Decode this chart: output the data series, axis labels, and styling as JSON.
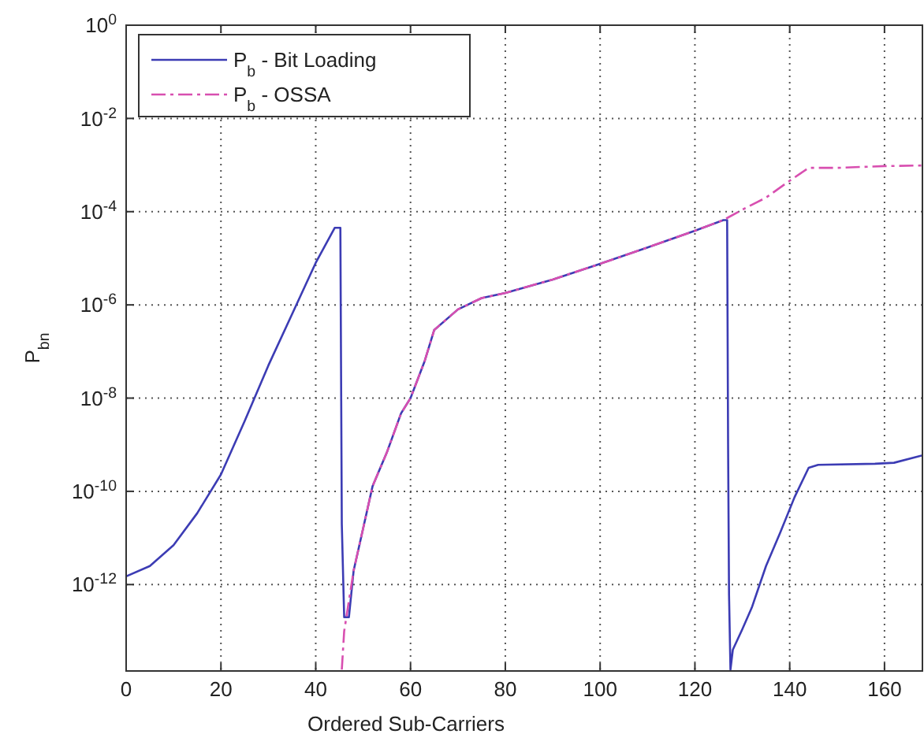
{
  "chart_data": {
    "type": "line",
    "xlabel": "Ordered Sub-Carriers",
    "ylabel": "P$_{bn}$",
    "log": "y",
    "grid": true,
    "legend": "top left",
    "marker": "none",
    "xlim": [
      0,
      168
    ],
    "xticks": [
      0,
      20,
      40,
      60,
      80,
      100,
      120,
      140,
      160
    ],
    "ylim": [
      1.4e-14,
      1
    ],
    "yticks": [
      {
        "value": 1e-12,
        "label": "10$^{-12}$"
      },
      {
        "value": 1e-10,
        "label": "10$^{-10}$"
      },
      {
        "value": 1e-08,
        "label": "10$^{-8}$"
      },
      {
        "value": 1e-06,
        "label": "10$^{-6}$"
      },
      {
        "value": 0.0001,
        "label": "10$^{-4}$"
      },
      {
        "value": 0.01,
        "label": "10$^{-2}$"
      },
      {
        "value": 1,
        "label": "10$^{0}$"
      }
    ],
    "series": [
      {
        "name": "P$_{b}$ - Bit Loading",
        "color": "#3c3cb4",
        "line_style": "solid",
        "x": [
          0,
          5,
          10,
          15,
          20,
          25,
          30,
          35,
          40,
          44,
          45.2,
          45.5,
          46,
          47,
          48,
          50,
          52,
          55,
          58,
          60,
          63,
          65,
          70,
          75,
          80,
          90,
          100,
          110,
          120,
          126,
          126.8,
          127,
          127.2,
          127.5,
          128,
          130,
          132,
          135,
          138,
          141,
          144,
          146,
          158,
          162,
          168
        ],
        "values": [
          1.5e-12,
          2.5e-12,
          7e-12,
          3.4e-11,
          2.3e-10,
          3.2e-09,
          5e-08,
          6.3e-07,
          8e-06,
          4.5e-05,
          4.5e-05,
          2e-11,
          2e-13,
          2e-13,
          2e-12,
          1.6e-11,
          1.3e-10,
          6.8e-10,
          4.7e-09,
          1e-08,
          6.3e-08,
          2.9e-07,
          8e-07,
          1.4e-06,
          1.8e-06,
          3.5e-06,
          7.6e-06,
          1.7e-05,
          3.9e-05,
          6.6e-05,
          6.6e-05,
          1e-09,
          6e-13,
          1.5e-14,
          4e-14,
          1.1e-13,
          3.2e-13,
          2.5e-12,
          1.3e-11,
          7.4e-11,
          3.2e-10,
          3.7e-10,
          3.9e-10,
          4.1e-10,
          5.9e-10
        ]
      },
      {
        "name": "P$_{b}$ - OSSA",
        "color": "#d84fb0",
        "line_style": "dashed",
        "x": [
          45.5,
          46,
          48,
          50,
          52,
          55,
          58,
          60,
          63,
          65,
          70,
          75,
          80,
          90,
          100,
          110,
          120,
          126,
          130,
          135,
          140,
          144,
          150,
          160,
          168
        ],
        "values": [
          1.5e-14,
          1e-13,
          2e-12,
          1.6e-11,
          1.3e-10,
          6.8e-10,
          4.7e-09,
          1e-08,
          6.3e-08,
          2.9e-07,
          8e-07,
          1.4e-06,
          1.8e-06,
          3.5e-06,
          7.6e-06,
          1.7e-05,
          3.9e-05,
          6.6e-05,
          0.00011,
          0.0002,
          0.00046,
          0.00087,
          0.00087,
          0.00095,
          0.00098
        ]
      }
    ]
  }
}
